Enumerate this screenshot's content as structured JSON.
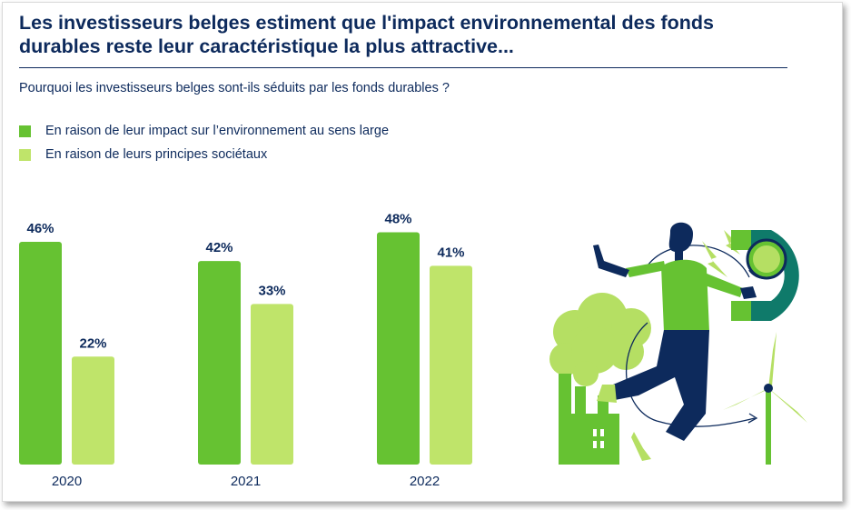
{
  "header": {
    "title": "Les investisseurs belges estiment que l'impact environnemental des fonds durables reste leur caractéristique la plus attractive...",
    "subtitle": "Pourquoi les investisseurs belges sont-ils séduits par les fonds durables ?"
  },
  "colors": {
    "title": "#0d2a5c",
    "series_1": "#66c232",
    "series_2": "#bfe46a"
  },
  "chart_data": {
    "type": "bar",
    "title": "Pourquoi les investisseurs belges sont-ils séduits par les fonds durables ?",
    "xlabel": "",
    "ylabel": "",
    "ylim": [
      0,
      50
    ],
    "grid": false,
    "legend_position": "top-left",
    "categories": [
      "2020",
      "2021",
      "2022"
    ],
    "series": [
      {
        "name": "En raison de leur impact sur l’environnement au sens large",
        "values": [
          46,
          42,
          48
        ],
        "labels": [
          "46%",
          "42%",
          "48%"
        ],
        "color": "#66c232"
      },
      {
        "name": "En raison de leurs principes sociétaux",
        "values": [
          22,
          33,
          41
        ],
        "labels": [
          "22%",
          "33%",
          "41%"
        ],
        "color": "#bfe46a"
      }
    ]
  },
  "illustration": {
    "icons": [
      "person-icon",
      "magnet-icon",
      "factory-icon",
      "wind-turbine-icon",
      "lightning-icon",
      "smoke-cloud-icon"
    ]
  }
}
